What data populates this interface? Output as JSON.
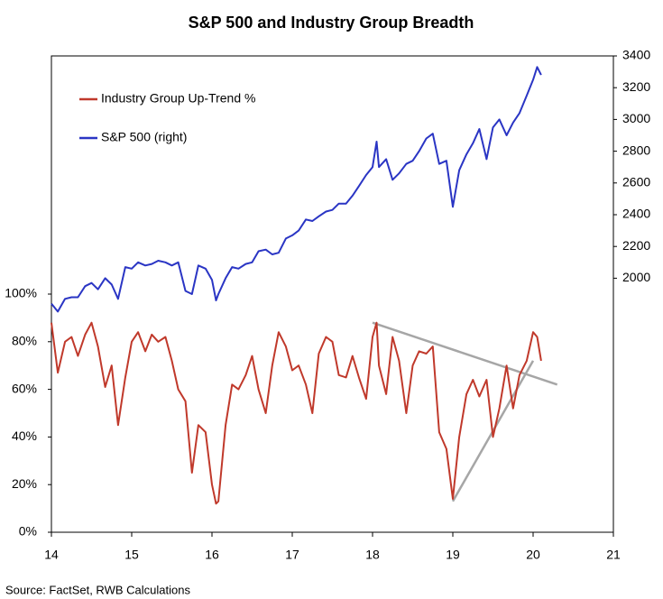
{
  "chart_data": {
    "type": "line",
    "title": "S&P 500 and Industry Group Breadth",
    "source": "Source: FactSet, RWB Calculations",
    "x": [
      14.0,
      14.08,
      14.17,
      14.25,
      14.33,
      14.42,
      14.5,
      14.58,
      14.67,
      14.75,
      14.83,
      14.92,
      15.0,
      15.08,
      15.17,
      15.25,
      15.33,
      15.42,
      15.5,
      15.58,
      15.67,
      15.75,
      15.83,
      15.92,
      16.0,
      16.05,
      16.08,
      16.17,
      16.25,
      16.33,
      16.42,
      16.5,
      16.58,
      16.67,
      16.75,
      16.83,
      16.92,
      17.0,
      17.08,
      17.17,
      17.25,
      17.33,
      17.42,
      17.5,
      17.58,
      17.67,
      17.75,
      17.83,
      17.92,
      18.0,
      18.05,
      18.08,
      18.17,
      18.25,
      18.33,
      18.42,
      18.5,
      18.58,
      18.67,
      18.75,
      18.83,
      18.92,
      19.0,
      19.08,
      19.17,
      19.25,
      19.33,
      19.42,
      19.5,
      19.58,
      19.67,
      19.75,
      19.83,
      19.92,
      20.0,
      20.05,
      20.1
    ],
    "series": [
      {
        "name": "Industry Group Up-Trend %",
        "color": "#c0392b",
        "values": [
          88,
          67,
          80,
          82,
          74,
          83,
          88,
          78,
          61,
          70,
          45,
          65,
          80,
          84,
          76,
          83,
          80,
          82,
          72,
          60,
          55,
          25,
          45,
          42,
          20,
          12,
          13,
          45,
          62,
          60,
          66,
          74,
          60,
          50,
          70,
          84,
          78,
          68,
          70,
          62,
          50,
          75,
          82,
          80,
          66,
          65,
          74,
          65,
          56,
          82,
          88,
          70,
          58,
          82,
          72,
          50,
          70,
          76,
          75,
          78,
          42,
          35,
          14,
          40,
          58,
          64,
          57,
          64,
          40,
          52,
          70,
          52,
          66,
          72,
          84,
          82,
          72
        ]
      },
      {
        "name": "S&P 500 (right)",
        "color": "#2a35c4",
        "axis": "y2",
        "values": [
          1840,
          1790,
          1870,
          1880,
          1880,
          1950,
          1970,
          1930,
          2000,
          1960,
          1870,
          2070,
          2060,
          2100,
          2080,
          2090,
          2110,
          2100,
          2080,
          2100,
          1920,
          1900,
          2080,
          2060,
          1990,
          1860,
          1900,
          2000,
          2070,
          2060,
          2090,
          2100,
          2170,
          2180,
          2150,
          2160,
          2250,
          2270,
          2300,
          2370,
          2360,
          2390,
          2420,
          2430,
          2470,
          2470,
          2520,
          2580,
          2650,
          2700,
          2860,
          2700,
          2750,
          2620,
          2660,
          2720,
          2740,
          2800,
          2880,
          2910,
          2720,
          2740,
          2450,
          2680,
          2780,
          2850,
          2940,
          2750,
          2950,
          3000,
          2900,
          2980,
          3040,
          3150,
          3250,
          3330,
          3280
        ]
      }
    ],
    "trend_lines": [
      {
        "color": "#a6a6a6",
        "x": [
          18.0,
          20.3
        ],
        "values": [
          88,
          62
        ]
      },
      {
        "color": "#a6a6a6",
        "x": [
          19.0,
          20.0
        ],
        "values": [
          13,
          72
        ]
      }
    ],
    "xlim": [
      14,
      21
    ],
    "xticks": [
      14,
      15,
      16,
      17,
      18,
      19,
      20,
      21
    ],
    "ylim": [
      0,
      200
    ],
    "yticks": [
      {
        "value": 0,
        "label": "0%"
      },
      {
        "value": 20,
        "label": "20%"
      },
      {
        "value": 40,
        "label": "40%"
      },
      {
        "value": 60,
        "label": "60%"
      },
      {
        "value": 80,
        "label": "80%"
      },
      {
        "value": 100,
        "label": "100%"
      }
    ],
    "y2lim": [
      400,
      3400
    ],
    "y2ticks": [
      2000,
      2200,
      2400,
      2600,
      2800,
      3000,
      3200,
      3400
    ],
    "legend": "upper left"
  }
}
